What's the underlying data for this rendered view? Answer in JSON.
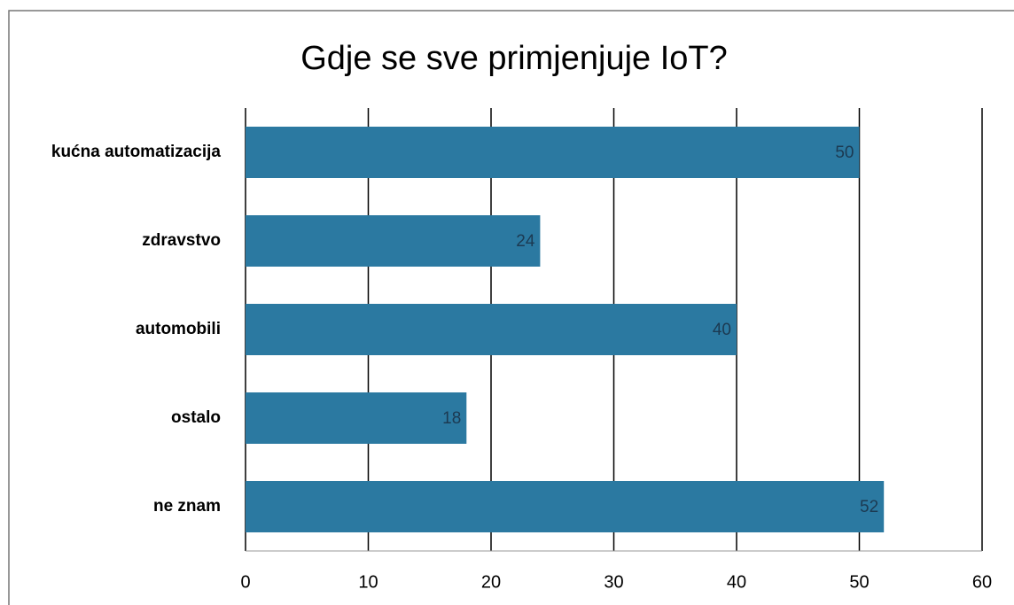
{
  "chart_data": {
    "type": "bar",
    "orientation": "horizontal",
    "title": "Gdje se sve primjenjuje IoT?",
    "categories": [
      "kućna automatizacija",
      "zdravstvo",
      "automobili",
      "ostalo",
      "ne znam"
    ],
    "values": [
      50,
      24,
      40,
      18,
      52
    ],
    "color": "#2b79a1",
    "xlim": [
      0,
      60
    ],
    "xticks": [
      0,
      10,
      20,
      30,
      40,
      50,
      60
    ],
    "grid": true
  }
}
